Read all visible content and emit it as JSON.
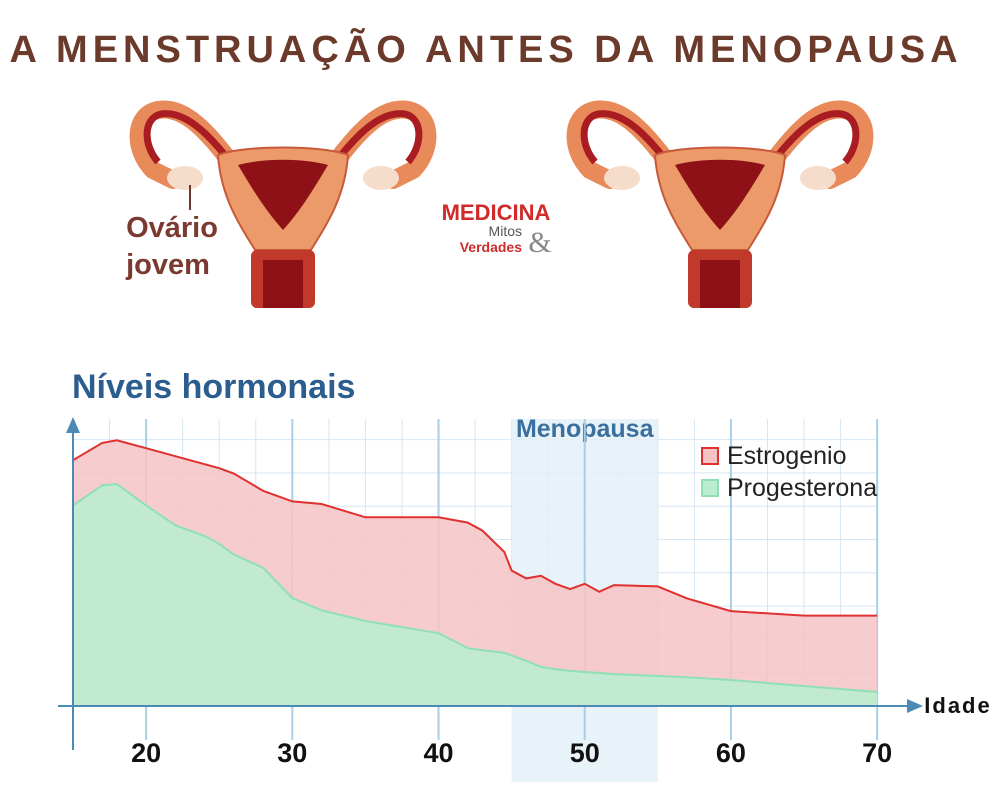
{
  "header": {
    "title": "A MENSTRUAÇÃO ANTES DA MENOPAUSA"
  },
  "illustration": {
    "label_lines": [
      "Ovário",
      "jovem"
    ]
  },
  "logo": {
    "name": "MEDICINA",
    "line1": "Mitos",
    "line2": "Verdades",
    "symbol": "&"
  },
  "chart_data": {
    "type": "area",
    "title": "Níveis hormonais",
    "x_label": "Idade",
    "x": [
      15,
      17,
      18,
      20,
      22,
      24,
      25,
      26,
      28,
      30,
      32,
      35,
      40,
      42,
      43,
      44.5,
      45,
      46,
      47,
      48,
      49,
      50,
      51,
      52,
      55,
      57,
      60,
      65,
      70
    ],
    "series": [
      {
        "name": "Estrogenio",
        "color": "#e0302f",
        "fill": "#f6c3c5",
        "values": [
          92.5,
          99,
          100,
          97,
          94,
          91,
          89.5,
          87.5,
          81,
          77,
          76,
          71,
          71,
          69,
          66,
          58,
          51,
          48,
          49,
          46,
          44,
          46,
          43,
          45.5,
          45,
          40.5,
          35.7,
          34,
          34
        ]
      },
      {
        "name": "Progesterona",
        "color": "#8fe0b5",
        "fill": "#b9eed1",
        "values": [
          75.5,
          83,
          83.5,
          75.5,
          68,
          64,
          61,
          57,
          52,
          40.6,
          36,
          32,
          27.4,
          21.8,
          21,
          20,
          19,
          17,
          14.7,
          13.8,
          13.2,
          12.8,
          12.4,
          12,
          11.3,
          10.8,
          9.8,
          7.5,
          5.3
        ]
      }
    ],
    "xlim": [
      15,
      73
    ],
    "xticks": [
      20,
      30,
      40,
      50,
      60,
      70
    ],
    "ylim": [
      0,
      108
    ],
    "annotations": [
      {
        "text": "Menopausa",
        "x0": 45,
        "x1": 55
      }
    ],
    "legend": "top-right"
  }
}
